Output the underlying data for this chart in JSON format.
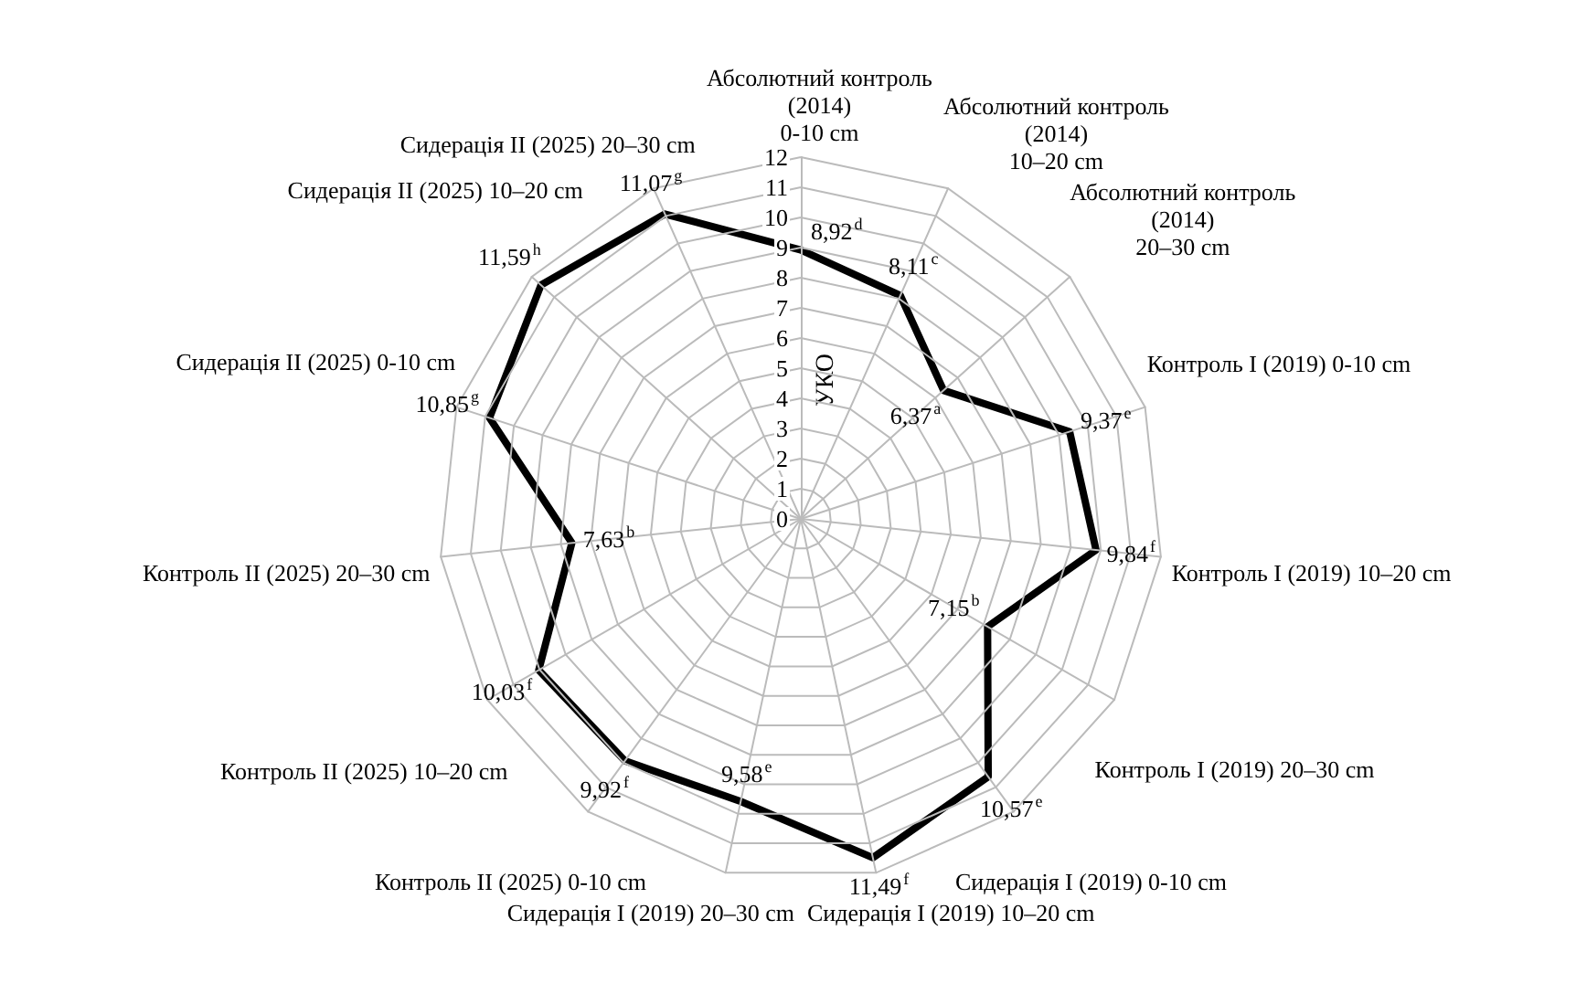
{
  "chart_data": {
    "type": "radar",
    "ylabel": "УКО",
    "categories": [
      "Абсолютний контроль (2014) 0-10 cm",
      "Абсолютний контроль (2014) 10–20 cm",
      "Абсолютний контроль (2014) 20–30 cm",
      "Контроль I (2019) 0-10 cm",
      "Контроль I (2019) 10–20 cm",
      "Контроль I (2019) 20–30 cm",
      "Сидерація I (2019) 0-10 cm",
      "Сидерація I (2019) 10–20 cm",
      "Сидерація I (2019) 20–30 cm",
      "Контроль II (2025) 0-10 cm",
      "Контроль II (2025) 10–20 cm",
      "Контроль II (2025) 20–30 cm",
      "Сидерація II (2025) 0-10 cm",
      "Сидерація II (2025) 10–20 cm",
      "Сидерація II (2025) 20–30 cm"
    ],
    "series": [
      {
        "color": "#000000",
        "values": [
          8.92,
          8.11,
          6.37,
          9.37,
          9.84,
          7.15,
          10.57,
          11.49,
          9.58,
          9.92,
          10.03,
          7.63,
          10.85,
          11.59,
          11.07
        ],
        "value_labels": [
          "8,92$^{d}$",
          "8,11$^{c}$",
          "6,37$^{a}$",
          "9,37$^{e}$",
          "9,84$^{f}$",
          "7,15$^{b}$",
          "10,57$^{e}$",
          "11,49$^{f}$",
          "9,58$^{e}$",
          "9,92$^{f}$",
          "10,03$^{f}$",
          "7,63$^{b}$",
          "10,85$^{g}$",
          "11,59$^{h}$",
          "11,07$^{g}$"
        ]
      }
    ],
    "ylim": [
      0,
      12
    ],
    "yticks": [
      0,
      1,
      2,
      3,
      4,
      5,
      6,
      7,
      8,
      9,
      10,
      11,
      12
    ],
    "grid": true,
    "marker": "none",
    "line_style": "solid"
  }
}
